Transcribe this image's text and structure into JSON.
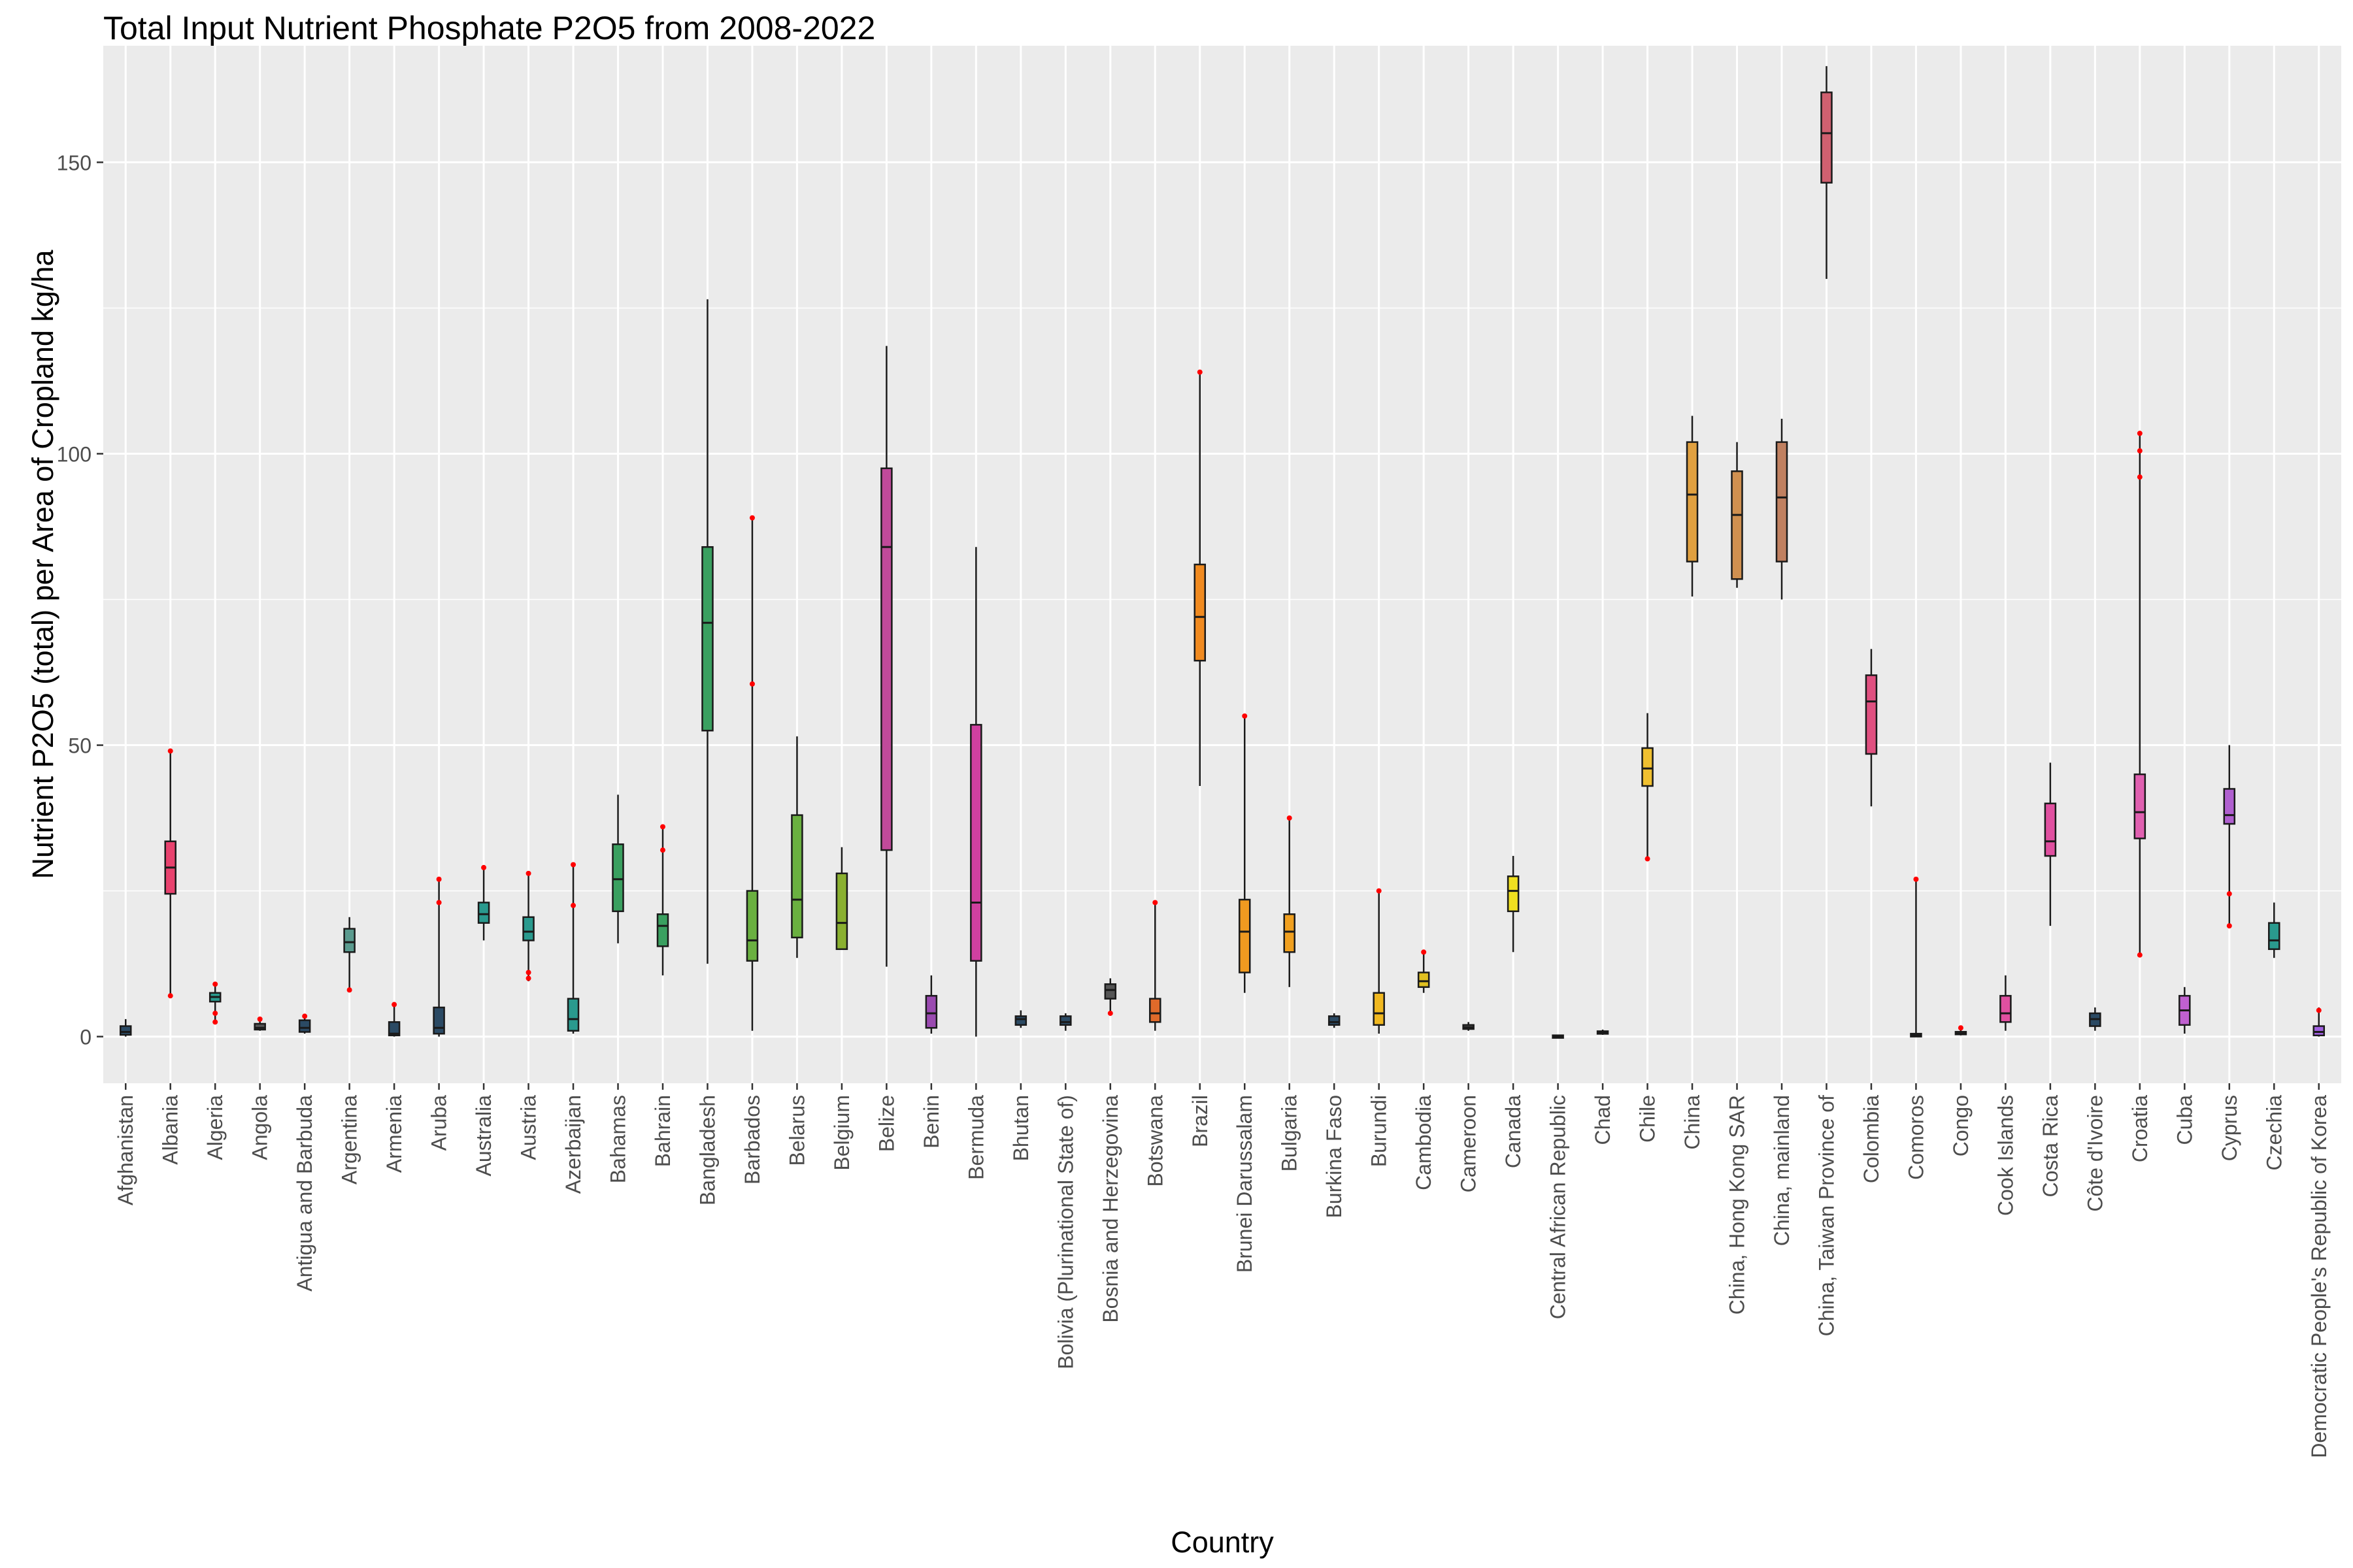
{
  "chart_data": {
    "type": "box",
    "title": "Total Input Nutrient Phosphate P2O5 from 2008-2022",
    "xlabel": "Country",
    "ylabel": "Nutrient P2O5 (total) per Area of Cropland kg/ha",
    "ylim": [
      -8,
      170
    ],
    "yticks": [
      0,
      50,
      100,
      150
    ],
    "grid": true,
    "legend": "none",
    "outlier_color": "#ff0000",
    "box_stats_keys": [
      "min",
      "q1",
      "median",
      "q3",
      "max"
    ],
    "boxes": [
      {
        "country": "Afghanistan",
        "color": "#2b4a64",
        "stats": [
          0,
          0.3,
          0.8,
          1.8,
          3
        ]
      },
      {
        "country": "Albania",
        "color": "#e8426e",
        "stats": [
          7,
          24.5,
          29,
          33.5,
          49
        ],
        "outliers": [
          7,
          49
        ]
      },
      {
        "country": "Algeria",
        "color": "#2a9a8e",
        "stats": [
          2.5,
          6,
          6.8,
          7.5,
          9
        ],
        "outliers": [
          2.5,
          4,
          9
        ]
      },
      {
        "country": "Angola",
        "color": "#555555",
        "stats": [
          1,
          1.2,
          1.5,
          2.2,
          3
        ],
        "outliers": [
          3
        ]
      },
      {
        "country": "Antigua and Barbuda",
        "color": "#2b4a64",
        "stats": [
          0.5,
          0.8,
          1.5,
          2.8,
          3.5
        ],
        "outliers": [
          3.5
        ]
      },
      {
        "country": "Argentina",
        "color": "#5a9a8e",
        "stats": [
          8,
          14.5,
          16.2,
          18.5,
          20.5
        ],
        "outliers": [
          8
        ]
      },
      {
        "country": "Armenia",
        "color": "#2b4a64",
        "stats": [
          0,
          0.2,
          0.5,
          2.5,
          5.5
        ],
        "outliers": [
          5.5
        ]
      },
      {
        "country": "Aruba",
        "color": "#2b4a64",
        "stats": [
          0,
          0.5,
          1.5,
          5,
          27
        ],
        "outliers": [
          23,
          27
        ]
      },
      {
        "country": "Australia",
        "color": "#2a9a8e",
        "stats": [
          16.5,
          19.5,
          21,
          23,
          29
        ],
        "outliers": [
          29
        ]
      },
      {
        "country": "Austria",
        "color": "#2a9a8e",
        "stats": [
          9.5,
          16.5,
          18,
          20.5,
          28
        ],
        "outliers": [
          10,
          11,
          28
        ]
      },
      {
        "country": "Azerbaijan",
        "color": "#2a9a8e",
        "stats": [
          0.5,
          1,
          3,
          6.5,
          29.5
        ],
        "outliers": [
          22.5,
          29.5
        ]
      },
      {
        "country": "Bahamas",
        "color": "#3aa060",
        "stats": [
          16,
          21.5,
          27,
          33,
          41.5
        ]
      },
      {
        "country": "Bahrain",
        "color": "#3aa060",
        "stats": [
          10.5,
          15.5,
          19,
          21,
          36
        ],
        "outliers": [
          32,
          36
        ]
      },
      {
        "country": "Bangladesh",
        "color": "#3aa060",
        "stats": [
          12.5,
          52.5,
          71,
          84,
          126.5
        ]
      },
      {
        "country": "Barbados",
        "color": "#6ab040",
        "stats": [
          1,
          13,
          16.5,
          25,
          89
        ],
        "outliers": [
          60.5,
          89
        ]
      },
      {
        "country": "Belarus",
        "color": "#6ab040",
        "stats": [
          13.5,
          17,
          23.5,
          38,
          51.5
        ]
      },
      {
        "country": "Belgium",
        "color": "#8ab030",
        "stats": [
          15,
          15,
          19.5,
          28,
          32.5
        ]
      },
      {
        "country": "Belize",
        "color": "#c04a9a",
        "stats": [
          12,
          32,
          84,
          97.5,
          118.5
        ]
      },
      {
        "country": "Benin",
        "color": "#9a4ab0",
        "stats": [
          0.5,
          1.5,
          4,
          7,
          10.5
        ]
      },
      {
        "country": "Bermuda",
        "color": "#d040a0",
        "stats": [
          0,
          13,
          23,
          53.5,
          84
        ]
      },
      {
        "country": "Bhutan",
        "color": "#2b4a64",
        "stats": [
          1.5,
          2,
          3,
          3.5,
          4.5
        ]
      },
      {
        "country": "Bolivia (Plurinational State of)",
        "color": "#2b4a64",
        "stats": [
          1,
          2,
          2.5,
          3.5,
          4
        ]
      },
      {
        "country": "Bosnia and Herzegovina",
        "color": "#555555",
        "stats": [
          4,
          6.5,
          8,
          9,
          10
        ],
        "outliers": [
          4
        ]
      },
      {
        "country": "Botswana",
        "color": "#e06a2a",
        "stats": [
          1,
          2.5,
          4,
          6.5,
          23
        ],
        "outliers": [
          23
        ]
      },
      {
        "country": "Brazil",
        "color": "#f08a20",
        "stats": [
          43,
          64.5,
          72,
          81,
          114
        ],
        "outliers": [
          114
        ]
      },
      {
        "country": "Brunei Darussalam",
        "color": "#f09a20",
        "stats": [
          7.5,
          11,
          18,
          23.5,
          55
        ],
        "outliers": [
          55
        ]
      },
      {
        "country": "Bulgaria",
        "color": "#f0a020",
        "stats": [
          8.5,
          14.5,
          18,
          21,
          37.5
        ],
        "outliers": [
          37.5
        ]
      },
      {
        "country": "Burkina Faso",
        "color": "#2b4a64",
        "stats": [
          1.5,
          2,
          2.5,
          3.5,
          4
        ]
      },
      {
        "country": "Burundi",
        "color": "#f0b820",
        "stats": [
          0.5,
          2,
          4,
          7.5,
          25
        ],
        "outliers": [
          25
        ]
      },
      {
        "country": "Cambodia",
        "color": "#e0c020",
        "stats": [
          7.5,
          8.5,
          9.5,
          11,
          14.5
        ],
        "outliers": [
          14.5
        ]
      },
      {
        "country": "Cameroon",
        "color": "#555555",
        "stats": [
          1,
          1.3,
          1.6,
          2,
          2.5
        ]
      },
      {
        "country": "Canada",
        "color": "#f0e020",
        "stats": [
          14.5,
          21.5,
          25,
          27.5,
          31
        ]
      },
      {
        "country": "Central African Republic",
        "color": "#2b4a64",
        "stats": [
          0,
          0,
          0,
          0,
          0
        ]
      },
      {
        "country": "Chad",
        "color": "#2b4a64",
        "stats": [
          0.3,
          0.5,
          0.7,
          0.9,
          1.2
        ]
      },
      {
        "country": "Chile",
        "color": "#f0c030",
        "stats": [
          30.5,
          43,
          46,
          49.5,
          55.5
        ],
        "outliers": [
          30.5
        ]
      },
      {
        "country": "China",
        "color": "#e0a040",
        "stats": [
          75.5,
          81.5,
          93,
          102,
          106.5
        ]
      },
      {
        "country": "China, Hong Kong SAR",
        "color": "#d09050",
        "stats": [
          77,
          78.5,
          89.5,
          97,
          102
        ]
      },
      {
        "country": "China, mainland",
        "color": "#c08060",
        "stats": [
          75,
          81.5,
          92.5,
          102,
          106
        ]
      },
      {
        "country": "China, Taiwan Province of",
        "color": "#d06070",
        "stats": [
          130,
          146.5,
          155,
          162,
          166.5
        ]
      },
      {
        "country": "Colombia",
        "color": "#e05080",
        "stats": [
          39.5,
          48.5,
          57.5,
          62,
          66.5
        ]
      },
      {
        "country": "Comoros",
        "color": "#2b4a64",
        "stats": [
          0,
          0,
          0.2,
          0.5,
          27
        ],
        "outliers": [
          27
        ]
      },
      {
        "country": "Congo",
        "color": "#555555",
        "stats": [
          0.2,
          0.4,
          0.5,
          0.8,
          1.5
        ],
        "outliers": [
          1.5
        ]
      },
      {
        "country": "Cook Islands",
        "color": "#e050a0",
        "stats": [
          1,
          2.5,
          4,
          7,
          10.5
        ]
      },
      {
        "country": "Costa Rica",
        "color": "#e050a0",
        "stats": [
          19,
          31,
          33.5,
          40,
          47
        ]
      },
      {
        "country": "Côte d'Ivoire",
        "color": "#2b4a64",
        "stats": [
          1,
          1.8,
          3,
          4,
          5
        ]
      },
      {
        "country": "Croatia",
        "color": "#e060b0",
        "stats": [
          14,
          34,
          38.5,
          45,
          103.5
        ],
        "outliers": [
          14,
          96,
          100.5,
          103.5
        ]
      },
      {
        "country": "Cuba",
        "color": "#c060d0",
        "stats": [
          0.5,
          2,
          4.5,
          7,
          8.5
        ]
      },
      {
        "country": "Cyprus",
        "color": "#b060d0",
        "stats": [
          19,
          36.5,
          38,
          42.5,
          50
        ],
        "outliers": [
          19,
          24.5
        ]
      },
      {
        "country": "Czechia",
        "color": "#2a9a8e",
        "stats": [
          13.5,
          15,
          16.5,
          19.5,
          23
        ]
      },
      {
        "country": "Democratic People's Republic of Korea",
        "color": "#a060e0",
        "stats": [
          0,
          0.2,
          0.8,
          1.8,
          5
        ],
        "outliers": [
          4.5
        ]
      }
    ]
  }
}
